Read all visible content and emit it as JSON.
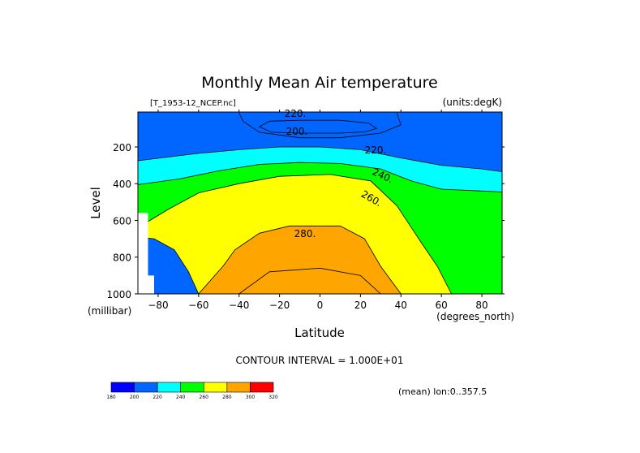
{
  "chart_data": {
    "type": "contour",
    "title": "Monthly Mean Air temperature",
    "file_label": "[T_1953-12_NCEP.nc]",
    "units_label": "(units:degK)",
    "xlabel": "Latitude",
    "x_unit": "(degrees_north)",
    "ylabel": "Level",
    "y_unit": "(millibar)",
    "xlim": [
      -90,
      90
    ],
    "ylim": [
      1000,
      10
    ],
    "y_inverted": true,
    "x_ticks": [
      -80,
      -60,
      -40,
      -20,
      0,
      20,
      40,
      60,
      80
    ],
    "x_tick_labels": [
      "−80",
      "−60",
      "−40",
      "−20",
      "0",
      "20",
      "40",
      "60",
      "80"
    ],
    "y_ticks": [
      200,
      400,
      600,
      800,
      1000
    ],
    "y_tick_labels": [
      "200",
      "400",
      "600",
      "800",
      "1000"
    ],
    "contour_interval_text": "CONTOUR INTERVAL = 1.000E+01",
    "footnote": "(mean) lon:0..357.5",
    "contour_labels": [
      "220.",
      "200.",
      "220.",
      "240.",
      "260.",
      "280."
    ],
    "colorbar": {
      "levels": [
        180,
        200,
        220,
        240,
        260,
        280,
        300,
        320
      ],
      "level_labels": [
        "180",
        "200",
        "220",
        "240",
        "260",
        "280",
        "300",
        "320"
      ],
      "colors": [
        "#0000ff",
        "#0066ff",
        "#00ffff",
        "#00ff00",
        "#ffff00",
        "#ffa500",
        "#ff0000"
      ]
    },
    "fill_bands": [
      {
        "band": "<200",
        "color": "#0000ff",
        "poly": [
          [
            -24,
            100
          ],
          [
            24,
            100
          ],
          [
            26,
            95
          ],
          [
            25,
            65
          ],
          [
            -24,
            62
          ],
          [
            -27,
            80
          ]
        ]
      },
      {
        "band": "200-220",
        "color": "#0066ff",
        "poly": [
          [
            -90,
            125
          ],
          [
            -70,
            130
          ],
          [
            -60,
            140
          ],
          [
            -55,
            145
          ],
          [
            -50,
            100
          ],
          [
            -45,
            40
          ],
          [
            -40,
            15
          ],
          [
            -90,
            20
          ]
        ]
      },
      {
        "band": "200-220",
        "color": "#0066ff",
        "poly": [
          [
            -40,
            15
          ],
          [
            90,
            15
          ],
          [
            90,
            335
          ],
          [
            80,
            320
          ],
          [
            60,
            300
          ],
          [
            40,
            260
          ],
          [
            20,
            215
          ],
          [
            0,
            200
          ],
          [
            -20,
            200
          ],
          [
            -40,
            215
          ],
          [
            -60,
            235
          ],
          [
            -75,
            255
          ],
          [
            -90,
            275
          ]
        ]
      },
      {
        "band": "220-240",
        "color": "#00ffff",
        "poly": [
          [
            -90,
            275
          ],
          [
            -75,
            255
          ],
          [
            -60,
            235
          ],
          [
            -40,
            215
          ],
          [
            -20,
            200
          ],
          [
            0,
            200
          ],
          [
            20,
            215
          ],
          [
            40,
            260
          ],
          [
            60,
            300
          ],
          [
            80,
            320
          ],
          [
            90,
            335
          ],
          [
            90,
            445
          ],
          [
            80,
            440
          ],
          [
            60,
            430
          ],
          [
            45,
            385
          ],
          [
            30,
            320
          ],
          [
            10,
            290
          ],
          [
            -10,
            285
          ],
          [
            -30,
            295
          ],
          [
            -50,
            330
          ],
          [
            -70,
            375
          ],
          [
            -90,
            405
          ]
        ]
      },
      {
        "band": "240-260",
        "color": "#00ff00",
        "poly": [
          [
            -90,
            405
          ],
          [
            -70,
            375
          ],
          [
            -50,
            330
          ],
          [
            -30,
            295
          ],
          [
            -10,
            285
          ],
          [
            10,
            290
          ],
          [
            30,
            320
          ],
          [
            45,
            385
          ],
          [
            60,
            430
          ],
          [
            80,
            440
          ],
          [
            90,
            445
          ],
          [
            90,
            1000
          ],
          [
            65,
            1000
          ],
          [
            58,
            850
          ],
          [
            50,
            720
          ],
          [
            38,
            520
          ],
          [
            25,
            385
          ],
          [
            5,
            350
          ],
          [
            -20,
            360
          ],
          [
            -40,
            400
          ],
          [
            -60,
            450
          ],
          [
            -75,
            540
          ],
          [
            -90,
            640
          ]
        ]
      },
      {
        "band": "260-280",
        "color": "#ffff00",
        "poly": [
          [
            -90,
            640
          ],
          [
            -75,
            540
          ],
          [
            -60,
            450
          ],
          [
            -40,
            400
          ],
          [
            -20,
            360
          ],
          [
            5,
            350
          ],
          [
            25,
            385
          ],
          [
            38,
            520
          ],
          [
            50,
            720
          ],
          [
            58,
            850
          ],
          [
            65,
            1000
          ],
          [
            -60,
            1000
          ],
          [
            -65,
            880
          ],
          [
            -72,
            760
          ],
          [
            -82,
            700
          ],
          [
            -90,
            690
          ]
        ]
      },
      {
        "band": "280-290",
        "color": "#ffa500",
        "poly": [
          [
            -60,
            1000
          ],
          [
            -48,
            850
          ],
          [
            -42,
            760
          ],
          [
            -30,
            670
          ],
          [
            -15,
            630
          ],
          [
            10,
            630
          ],
          [
            22,
            700
          ],
          [
            30,
            850
          ],
          [
            40,
            1000
          ]
        ]
      }
    ],
    "contour_lines": [
      [
        [
          -24,
          120
        ],
        [
          -10,
          125
        ],
        [
          10,
          125
        ],
        [
          22,
          118
        ],
        [
          28,
          100
        ],
        [
          24,
          70
        ],
        [
          10,
          55
        ],
        [
          -10,
          55
        ],
        [
          -25,
          60
        ],
        [
          -30,
          90
        ],
        [
          -24,
          120
        ]
      ],
      [
        [
          -40,
          15
        ],
        [
          -38,
          60
        ],
        [
          -30,
          120
        ],
        [
          -10,
          150
        ],
        [
          10,
          150
        ],
        [
          30,
          125
        ],
        [
          40,
          80
        ],
        [
          38,
          15
        ]
      ],
      [
        [
          -90,
          275
        ],
        [
          -75,
          255
        ],
        [
          -60,
          235
        ],
        [
          -40,
          215
        ],
        [
          -20,
          200
        ],
        [
          0,
          200
        ],
        [
          20,
          215
        ],
        [
          40,
          260
        ],
        [
          60,
          300
        ],
        [
          80,
          320
        ],
        [
          90,
          335
        ]
      ],
      [
        [
          -90,
          405
        ],
        [
          -70,
          375
        ],
        [
          -50,
          330
        ],
        [
          -30,
          295
        ],
        [
          -10,
          285
        ],
        [
          10,
          290
        ],
        [
          30,
          320
        ],
        [
          45,
          385
        ],
        [
          60,
          430
        ],
        [
          80,
          440
        ],
        [
          90,
          445
        ]
      ],
      [
        [
          -90,
          640
        ],
        [
          -75,
          540
        ],
        [
          -60,
          450
        ],
        [
          -40,
          400
        ],
        [
          -20,
          360
        ],
        [
          5,
          350
        ],
        [
          25,
          385
        ],
        [
          38,
          520
        ],
        [
          50,
          720
        ],
        [
          58,
          850
        ],
        [
          65,
          1000
        ]
      ],
      [
        [
          -90,
          690
        ],
        [
          -82,
          700
        ],
        [
          -72,
          760
        ],
        [
          -65,
          880
        ],
        [
          -60,
          1000
        ]
      ],
      [
        [
          -60,
          1000
        ],
        [
          -48,
          850
        ],
        [
          -42,
          760
        ],
        [
          -30,
          670
        ],
        [
          -15,
          630
        ],
        [
          10,
          630
        ],
        [
          22,
          700
        ],
        [
          30,
          850
        ],
        [
          40,
          1000
        ]
      ],
      [
        [
          -40,
          1000
        ],
        [
          -25,
          880
        ],
        [
          0,
          860
        ],
        [
          20,
          900
        ],
        [
          30,
          1000
        ]
      ]
    ],
    "missing_region": [
      [
        -90,
        560
      ],
      [
        -85,
        560
      ],
      [
        -85,
        900
      ],
      [
        -82,
        900
      ],
      [
        -82,
        1000
      ],
      [
        -90,
        1000
      ]
    ]
  }
}
